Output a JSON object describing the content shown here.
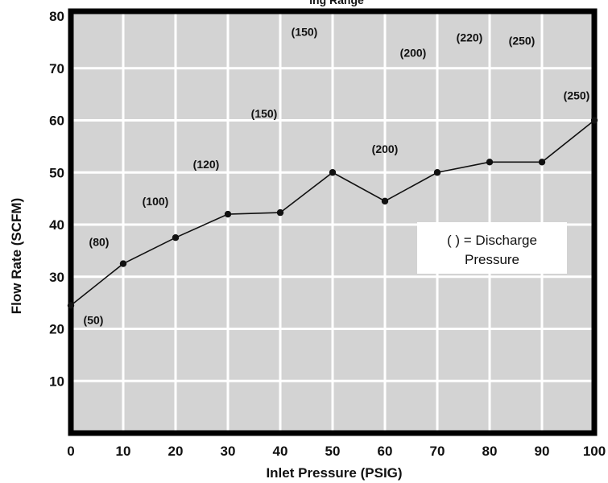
{
  "chart_data": {
    "type": "line",
    "title_fragment": "ing Range",
    "xlabel": "Inlet Pressure (PSIG)",
    "ylabel": "Flow Rate (SCFM)",
    "xlim": [
      0,
      100
    ],
    "ylim": [
      0,
      80
    ],
    "x_ticks": [
      0,
      10,
      20,
      30,
      40,
      50,
      60,
      70,
      80,
      90,
      100
    ],
    "y_ticks": [
      10,
      20,
      30,
      40,
      50,
      60,
      70,
      80
    ],
    "grid": true,
    "legend": "none",
    "series": [
      {
        "x": [
          0,
          10,
          20,
          30,
          40,
          50,
          60,
          70,
          80,
          90,
          100
        ],
        "y": [
          24.5,
          32.5,
          37.5,
          42,
          42.3,
          50,
          44.5,
          50,
          52,
          52,
          60
        ]
      }
    ],
    "point_labels": [
      "(50)",
      "(80)",
      "(100)",
      "(120)",
      "(150)",
      "(150)",
      "(200)",
      "(200)",
      "(220)",
      "(250)",
      "(250)"
    ],
    "annotation": {
      "line1": "( ) = Discharge",
      "line2": "Pressure"
    }
  },
  "colors": {
    "plot_fill": "#d3d3d3",
    "grid": "#ffffff",
    "frame": "#000000",
    "line": "#111111"
  }
}
